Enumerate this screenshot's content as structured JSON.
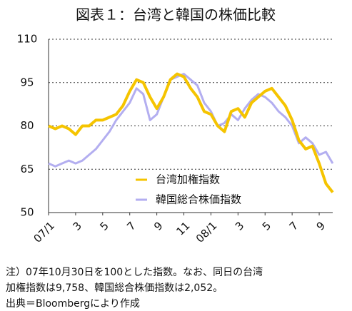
{
  "chart_data": {
    "type": "line",
    "title": "図表１：台湾と韓国の株価比較",
    "x": [
      0,
      0.5,
      1,
      1.5,
      2,
      2.5,
      3,
      3.5,
      4,
      4.5,
      5,
      5.5,
      6,
      6.5,
      7,
      7.5,
      8,
      8.5,
      9,
      9.5,
      10,
      10.5,
      11,
      11.5,
      12,
      12.5,
      13,
      13.5,
      14,
      14.5,
      15,
      15.5,
      16,
      16.5,
      17,
      17.5,
      18,
      18.5,
      19,
      19.5,
      20,
      20.5,
      21
    ],
    "series": [
      {
        "name": "台湾加権指数",
        "color": "#f5c400",
        "values": [
          80,
          79,
          80,
          79,
          77,
          80,
          80,
          82,
          82,
          83,
          84,
          87,
          92,
          96,
          95,
          90,
          86,
          90,
          96,
          98,
          97,
          93,
          90,
          85,
          84,
          80,
          78,
          85,
          86,
          83,
          88,
          90,
          92,
          93,
          90,
          87,
          82,
          75,
          72,
          73,
          67,
          60,
          57
        ]
      },
      {
        "name": "韓国総合株価指数",
        "color": "#b3aef0",
        "values": [
          67,
          66,
          67,
          68,
          67,
          68,
          70,
          72,
          75,
          78,
          82,
          85,
          88,
          93,
          91,
          82,
          84,
          90,
          96,
          97,
          98,
          96,
          94,
          88,
          85,
          80,
          81,
          84,
          82,
          86,
          89,
          91,
          90,
          88,
          85,
          83,
          80,
          74,
          76,
          74,
          70,
          71,
          67
        ]
      }
    ],
    "xlim": [
      0,
      21
    ],
    "xticks": [
      {
        "value": 0,
        "label": "07/1"
      },
      {
        "value": 2,
        "label": "3"
      },
      {
        "value": 4,
        "label": "5"
      },
      {
        "value": 6,
        "label": "7"
      },
      {
        "value": 8,
        "label": "9"
      },
      {
        "value": 10,
        "label": "11"
      },
      {
        "value": 12,
        "label": "08/1"
      },
      {
        "value": 14,
        "label": "3"
      },
      {
        "value": 16,
        "label": "5"
      },
      {
        "value": 18,
        "label": "7"
      },
      {
        "value": 20,
        "label": "9"
      }
    ],
    "ylim": [
      50,
      110
    ],
    "yticks": [
      50,
      65,
      80,
      95,
      110
    ],
    "grid": true,
    "notes": [
      "注）07年10月30日を100とした指数。なお、同日の台湾",
      "加権指数は9,758、韓国総合株価指数は2,052。",
      "出典＝Bloombergにより作成"
    ]
  }
}
